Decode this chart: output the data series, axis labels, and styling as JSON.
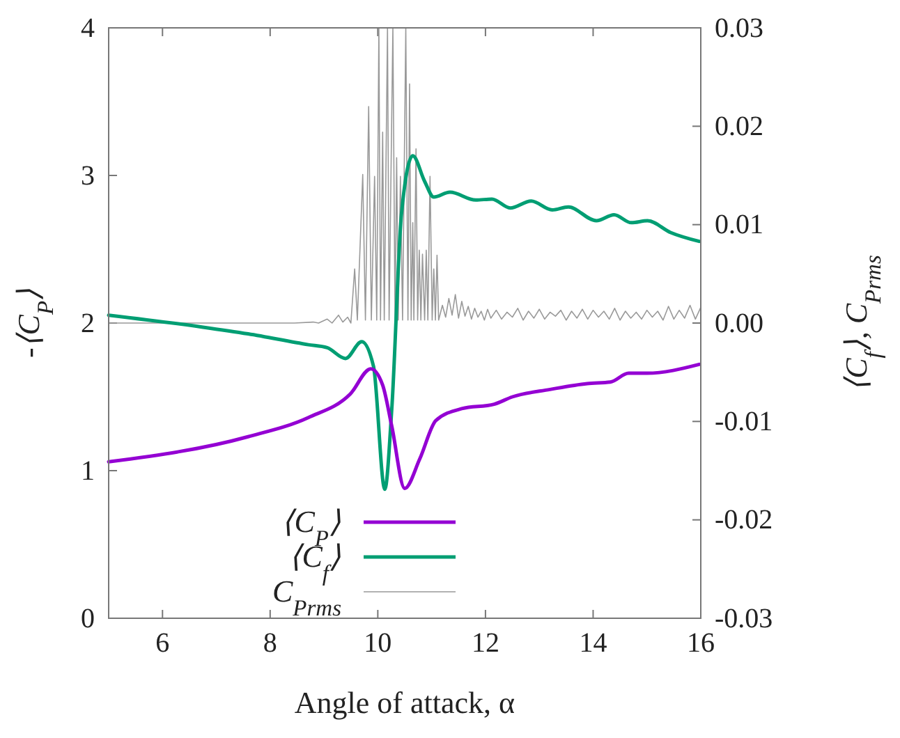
{
  "chart_data": {
    "type": "line",
    "xlabel": "Angle of attack, α",
    "ylabel": "-⟨C$_{P}$⟩",
    "y2label": "⟨C$_{f}$⟩, C$_{Prms}$",
    "xlim": [
      5,
      16
    ],
    "xticks": [
      6,
      8,
      10,
      12,
      14,
      16
    ],
    "ylim": [
      0,
      4
    ],
    "yticks": [
      0,
      1,
      2,
      3,
      4
    ],
    "y2lim": [
      -0.03,
      0.03
    ],
    "y2ticks": [
      -0.03,
      -0.02,
      -0.01,
      {
        "value": 0,
        "label": "0.00"
      },
      0.01,
      0.02,
      0.03
    ],
    "grid": false,
    "legend": "bottom",
    "marker": "none",
    "line_style": "solid",
    "series": [
      {
        "name": "⟨C$_{P}$⟩",
        "color": "#9400d3",
        "x": [
          5,
          7.59,
          8.71,
          9.49,
          9.87,
          10.09,
          10.26,
          10.5,
          10.78,
          11.08,
          11.56,
          12.16,
          12.5,
          13.2,
          13.89,
          14.32,
          14.66,
          15,
          15.97
        ],
        "values": [
          1.06,
          1.23,
          1.36,
          1.52,
          1.69,
          1.58,
          1.3,
          0.88,
          1.08,
          1.34,
          1.42,
          1.45,
          1.5,
          1.55,
          1.59,
          1.6,
          1.66,
          1.66,
          1.72
        ]
      },
      {
        "name": "⟨C$_{f}$⟩",
        "color": "#009e73",
        "axis": "y2",
        "x": [
          5,
          6.73,
          7.59,
          8.71,
          9.06,
          9.4,
          9.7,
          9.92,
          10.13,
          10.26,
          10.44,
          10.65,
          10.87,
          11.04,
          11.34,
          11.82,
          12.12,
          12.46,
          12.85,
          13.24,
          13.54,
          14.06,
          14.39,
          14.71,
          15.01,
          15.44,
          15.97
        ],
        "values": [
          0.0008,
          -0.0004,
          -0.0011,
          -0.0022,
          -0.0025,
          -0.0036,
          -0.0019,
          -0.0044,
          -0.0169,
          -0.0087,
          0.0111,
          0.017,
          0.0144,
          0.0128,
          0.0133,
          0.0125,
          0.0126,
          0.0117,
          0.0124,
          0.0115,
          0.0118,
          0.0104,
          0.011,
          0.0102,
          0.0104,
          0.0092,
          0.0083
        ]
      },
      {
        "name": "C$_{Prms}$",
        "color": "#999999",
        "axis": "y2",
        "x": [
          5,
          8.45,
          8.8,
          8.9,
          9.06,
          9.15,
          9.27,
          9.35,
          9.44,
          9.5,
          9.57,
          9.62,
          9.72,
          9.77,
          9.83,
          9.88,
          9.94,
          9.98,
          10.02,
          10.05,
          10.09,
          10.12,
          10.18,
          10.21,
          10.28,
          10.32,
          10.35,
          10.38,
          10.42,
          10.46,
          10.52,
          10.56,
          10.59,
          10.62,
          10.65,
          10.67,
          10.71,
          10.74,
          10.77,
          10.8,
          10.83,
          10.87,
          10.9,
          10.93,
          10.97,
          11.01,
          11.04,
          11.07,
          11.1,
          11.13,
          11.2,
          11.26,
          11.32,
          11.38,
          11.44,
          11.5,
          11.56,
          11.62,
          11.68,
          11.74,
          11.8,
          11.86,
          11.92,
          11.98,
          12.04,
          12.1,
          12.2,
          12.3,
          12.4,
          12.5,
          12.6,
          12.7,
          12.8,
          12.9,
          13,
          13.1,
          13.2,
          13.3,
          13.4,
          13.5,
          13.6,
          13.7,
          13.8,
          13.9,
          14,
          14.1,
          14.2,
          14.3,
          14.4,
          14.5,
          14.6,
          14.7,
          14.8,
          14.9,
          15,
          15.1,
          15.2,
          15.3,
          15.4,
          15.5,
          15.6,
          15.7,
          15.8,
          15.9,
          16
        ],
        "values": [
          0,
          0,
          0.0001,
          0,
          0.0004,
          0,
          0.0008,
          0.0001,
          0.0006,
          0,
          0.0055,
          0.0003,
          0.0151,
          0.0003,
          0.022,
          0.0003,
          0.0149,
          0.0003,
          0.03,
          0.0003,
          0.0194,
          0.0003,
          0.03,
          0.0003,
          0.03,
          0.0003,
          0.0168,
          0.0003,
          0.0149,
          0.0003,
          0.03,
          0.0003,
          0.0243,
          0.0003,
          0.0102,
          0.0003,
          0.0177,
          0.0003,
          0.0074,
          0.0003,
          0.007,
          0.0003,
          0.0074,
          0.0003,
          0.0149,
          0.0003,
          0.0055,
          0.0003,
          0.0069,
          0.0003,
          0.0018,
          0.0006,
          0.0025,
          0.0008,
          0.0029,
          0.0005,
          0.0022,
          0.0007,
          0.0017,
          0.0004,
          0.0015,
          0.0006,
          0.0012,
          0.0003,
          0.0014,
          0.0005,
          0.0013,
          0.0004,
          0.0011,
          0.0006,
          0.0015,
          0.0003,
          0.0012,
          0.0005,
          0.0014,
          0.0004,
          0.0011,
          0.0007,
          0.0013,
          0.0003,
          0.0012,
          0.0005,
          0.0014,
          0.0004,
          0.0013,
          0.0006,
          0.0012,
          0.0004,
          0.0015,
          0.0003,
          0.0012,
          0.0005,
          0.0011,
          0.0004,
          0.0013,
          0.0006,
          0.0012,
          0.0003,
          0.0017,
          0.0004,
          0.0013,
          0.0005,
          0.0018,
          0.0004,
          0.0016
        ]
      }
    ]
  }
}
